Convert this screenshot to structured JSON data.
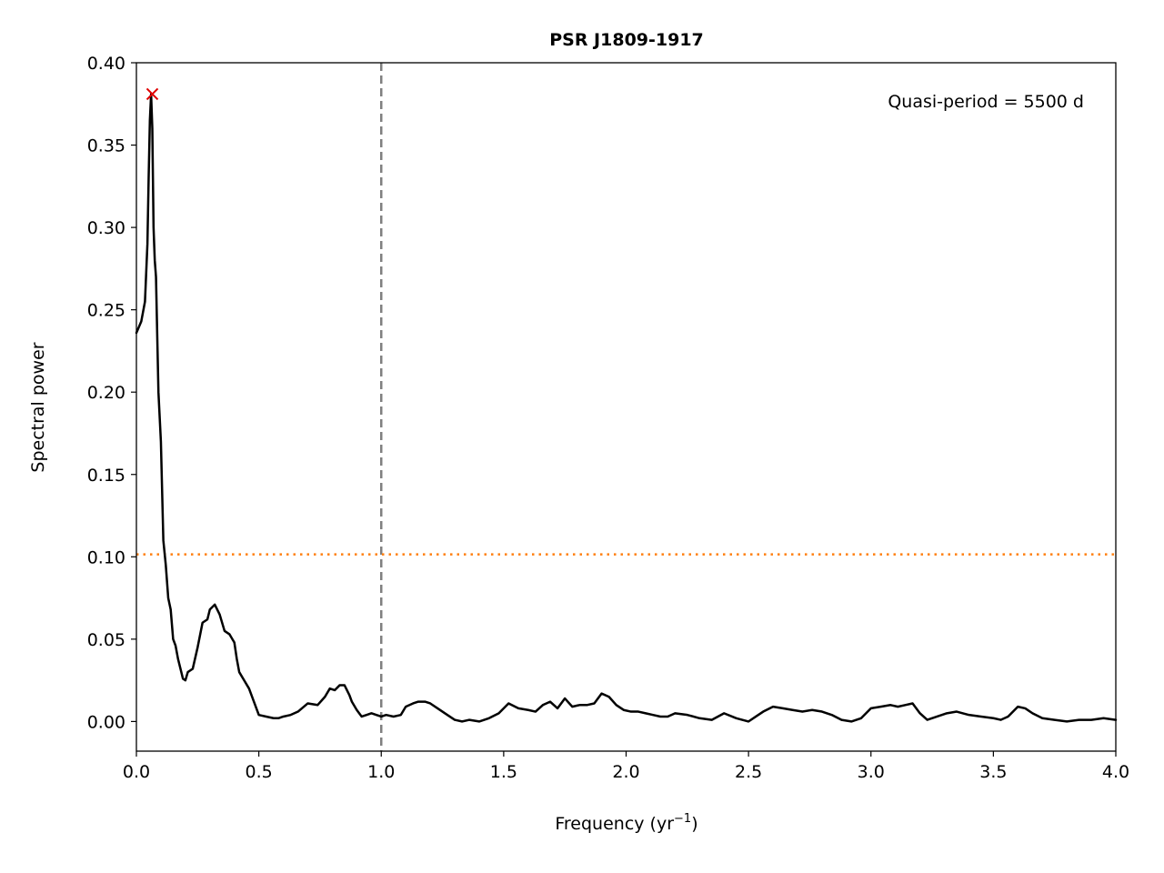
{
  "chart_data": {
    "type": "line",
    "title": "PSR J1809-1917",
    "xlabel": "Frequency (yr",
    "xlabel_sup": "−1",
    "xlabel_end": ")",
    "ylabel": "Spectral power",
    "xlim": [
      0.0,
      4.0
    ],
    "ylim": [
      -0.018,
      0.4
    ],
    "x_ticks": [
      0.0,
      0.5,
      1.0,
      1.5,
      2.0,
      2.5,
      3.0,
      3.5,
      4.0
    ],
    "x_tick_labels": [
      "0.0",
      "0.5",
      "1.0",
      "1.5",
      "2.0",
      "2.5",
      "3.0",
      "3.5",
      "4.0"
    ],
    "y_ticks": [
      0.0,
      0.05,
      0.1,
      0.15,
      0.2,
      0.25,
      0.3,
      0.35,
      0.4
    ],
    "y_tick_labels": [
      "0.00",
      "0.05",
      "0.10",
      "0.15",
      "0.20",
      "0.25",
      "0.30",
      "0.35",
      "0.40"
    ],
    "annotation": "Quasi-period = 5500 d",
    "grid": false,
    "series": [
      {
        "color": "#000000",
        "x": [
          0.0,
          0.02,
          0.035,
          0.045,
          0.05,
          0.055,
          0.06,
          0.065,
          0.07,
          0.075,
          0.08,
          0.09,
          0.1,
          0.11,
          0.12,
          0.13,
          0.14,
          0.15,
          0.16,
          0.17,
          0.18,
          0.19,
          0.2,
          0.21,
          0.22,
          0.23,
          0.25,
          0.27,
          0.29,
          0.3,
          0.32,
          0.34,
          0.36,
          0.38,
          0.4,
          0.41,
          0.42,
          0.44,
          0.46,
          0.48,
          0.5,
          0.53,
          0.56,
          0.58,
          0.6,
          0.63,
          0.66,
          0.7,
          0.74,
          0.77,
          0.79,
          0.81,
          0.83,
          0.85,
          0.87,
          0.88,
          0.9,
          0.92,
          0.94,
          0.96,
          0.98,
          1.0,
          1.02,
          1.05,
          1.08,
          1.1,
          1.13,
          1.15,
          1.18,
          1.2,
          1.23,
          1.27,
          1.3,
          1.33,
          1.36,
          1.4,
          1.44,
          1.48,
          1.52,
          1.56,
          1.6,
          1.63,
          1.66,
          1.69,
          1.72,
          1.75,
          1.78,
          1.81,
          1.84,
          1.87,
          1.9,
          1.93,
          1.96,
          1.99,
          2.02,
          2.05,
          2.08,
          2.11,
          2.14,
          2.17,
          2.2,
          2.25,
          2.3,
          2.35,
          2.4,
          2.45,
          2.5,
          2.53,
          2.56,
          2.6,
          2.64,
          2.68,
          2.72,
          2.76,
          2.8,
          2.84,
          2.88,
          2.92,
          2.96,
          3.0,
          3.04,
          3.08,
          3.11,
          3.14,
          3.17,
          3.2,
          3.23,
          3.27,
          3.31,
          3.35,
          3.4,
          3.45,
          3.5,
          3.53,
          3.56,
          3.6,
          3.63,
          3.66,
          3.7,
          3.75,
          3.8,
          3.85,
          3.9,
          3.95,
          4.0
        ],
        "y": [
          0.236,
          0.243,
          0.255,
          0.29,
          0.33,
          0.365,
          0.381,
          0.36,
          0.3,
          0.28,
          0.27,
          0.2,
          0.17,
          0.11,
          0.095,
          0.075,
          0.068,
          0.05,
          0.046,
          0.038,
          0.032,
          0.026,
          0.025,
          0.03,
          0.031,
          0.032,
          0.045,
          0.06,
          0.062,
          0.068,
          0.071,
          0.065,
          0.055,
          0.053,
          0.048,
          0.038,
          0.03,
          0.025,
          0.02,
          0.012,
          0.004,
          0.003,
          0.002,
          0.002,
          0.003,
          0.004,
          0.006,
          0.011,
          0.01,
          0.015,
          0.02,
          0.019,
          0.022,
          0.022,
          0.016,
          0.012,
          0.007,
          0.003,
          0.004,
          0.005,
          0.004,
          0.003,
          0.004,
          0.003,
          0.004,
          0.009,
          0.011,
          0.012,
          0.012,
          0.011,
          0.008,
          0.004,
          0.001,
          0.0,
          0.001,
          0.0,
          0.002,
          0.005,
          0.011,
          0.008,
          0.007,
          0.006,
          0.01,
          0.012,
          0.008,
          0.014,
          0.009,
          0.01,
          0.01,
          0.011,
          0.017,
          0.015,
          0.01,
          0.007,
          0.006,
          0.006,
          0.005,
          0.004,
          0.003,
          0.003,
          0.005,
          0.004,
          0.002,
          0.001,
          0.005,
          0.002,
          0.0,
          0.003,
          0.006,
          0.009,
          0.008,
          0.007,
          0.006,
          0.007,
          0.006,
          0.004,
          0.001,
          0.0,
          0.002,
          0.008,
          0.009,
          0.01,
          0.009,
          0.01,
          0.011,
          0.005,
          0.001,
          0.003,
          0.005,
          0.006,
          0.004,
          0.003,
          0.002,
          0.001,
          0.003,
          0.009,
          0.008,
          0.005,
          0.002,
          0.001,
          0.0,
          0.001,
          0.001,
          0.002,
          0.001
        ]
      }
    ],
    "peak_marker": {
      "x": 0.065,
      "y": 0.381,
      "color": "#e00000"
    },
    "vertical_line": {
      "x": 1.0,
      "color": "#808080",
      "style": "dashed"
    },
    "horizontal_line": {
      "y": 0.1015,
      "color": "#ff7f0e",
      "style": "dotted"
    }
  }
}
